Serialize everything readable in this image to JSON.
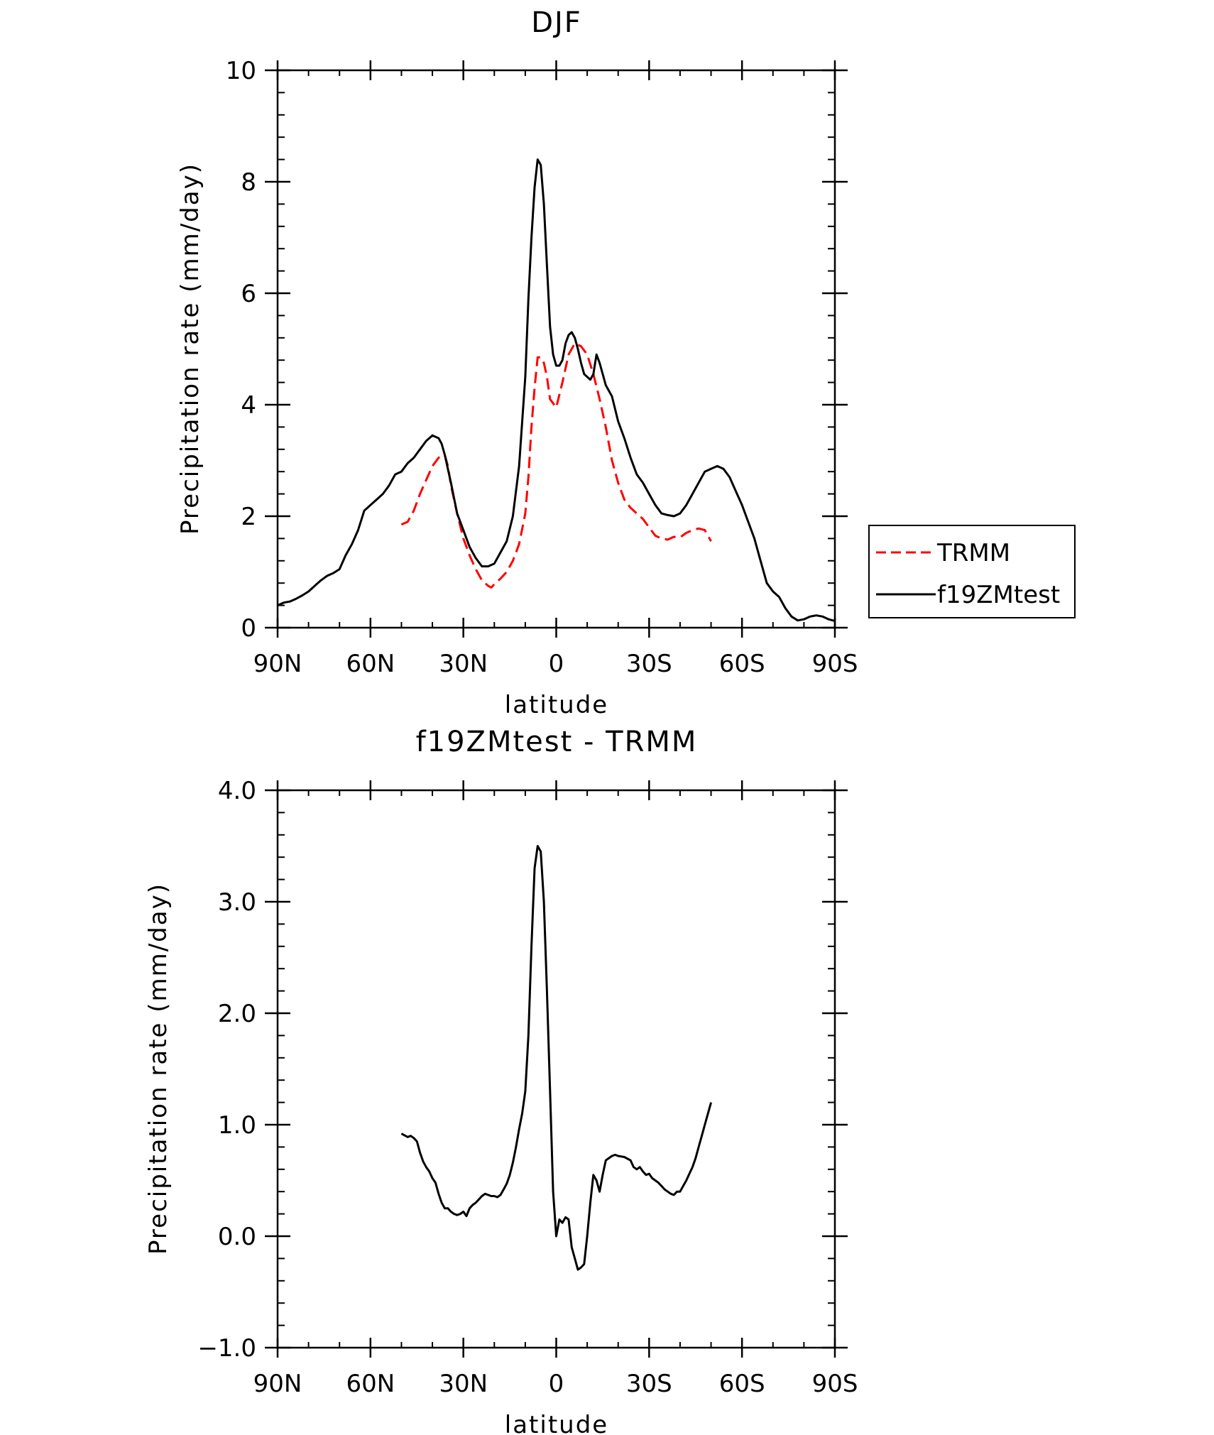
{
  "chart_data": [
    {
      "type": "line",
      "title": "DJF",
      "xlabel": "latitude",
      "ylabel": "Precipitation rate (mm/day)",
      "xlim": [
        90,
        -90
      ],
      "ylim": [
        0,
        10
      ],
      "x_ticks": [
        90,
        60,
        30,
        0,
        -30,
        -60,
        -90
      ],
      "x_tick_labels": [
        "90N",
        "60N",
        "30N",
        "0",
        "30S",
        "60S",
        "90S"
      ],
      "y_ticks": [
        0,
        2,
        4,
        6,
        8,
        10
      ],
      "y_tick_labels": [
        "0",
        "2",
        "4",
        "6",
        "8",
        "10"
      ],
      "legend": {
        "position": "right",
        "entries": [
          "TRMM",
          "f19ZMtest"
        ]
      },
      "series": [
        {
          "name": "TRMM",
          "color": "#ff0000",
          "style": "dashed",
          "x": [
            50,
            48,
            46,
            44,
            42,
            40,
            38,
            36,
            35,
            34,
            32,
            30,
            28,
            26,
            24,
            22,
            21,
            20,
            18,
            16,
            14,
            12,
            10,
            9,
            8,
            7,
            6,
            5,
            4,
            3,
            2,
            0,
            -2,
            -4,
            -6,
            -8,
            -10,
            -12,
            -14,
            -16,
            -18,
            -20,
            -22,
            -24,
            -26,
            -28,
            -30,
            -32,
            -34,
            -36,
            -38,
            -40,
            -42,
            -44,
            -46,
            -48,
            -50
          ],
          "y": [
            1.85,
            1.9,
            2.1,
            2.4,
            2.65,
            2.9,
            3.05,
            3.1,
            2.9,
            2.55,
            2.05,
            1.6,
            1.3,
            1.05,
            0.85,
            0.75,
            0.72,
            0.78,
            0.88,
            1.0,
            1.2,
            1.5,
            2.05,
            2.7,
            3.6,
            4.3,
            4.85,
            4.85,
            4.75,
            4.5,
            4.1,
            3.95,
            4.4,
            4.9,
            5.1,
            5.05,
            4.9,
            4.55,
            4.1,
            3.6,
            3.0,
            2.6,
            2.3,
            2.15,
            2.05,
            1.95,
            1.8,
            1.65,
            1.6,
            1.58,
            1.63,
            1.62,
            1.7,
            1.75,
            1.78,
            1.75,
            1.55
          ]
        },
        {
          "name": "f19ZMtest",
          "color": "#000000",
          "style": "solid",
          "x": [
            90,
            88,
            86,
            84,
            82,
            80,
            78,
            76,
            74,
            72,
            70,
            68,
            66,
            64,
            62,
            61,
            60,
            58,
            56,
            54,
            52,
            50,
            48,
            46,
            44,
            42,
            40,
            38,
            37,
            36,
            34,
            32,
            30,
            28,
            26,
            24,
            22,
            20,
            18,
            16,
            14,
            12,
            10,
            9,
            8,
            7,
            6,
            5,
            4,
            3,
            2,
            1,
            0,
            -1,
            -2,
            -3,
            -4,
            -5,
            -6,
            -7,
            -8,
            -9,
            -10,
            -11,
            -12,
            -13,
            -14,
            -16,
            -18,
            -20,
            -22,
            -24,
            -26,
            -28,
            -30,
            -32,
            -34,
            -36,
            -38,
            -40,
            -42,
            -44,
            -46,
            -48,
            -50,
            -52,
            -54,
            -56,
            -58,
            -60,
            -62,
            -64,
            -66,
            -68,
            -70,
            -72,
            -74,
            -76,
            -78,
            -80,
            -82,
            -84,
            -86,
            -88,
            -90
          ],
          "y": [
            0.4,
            0.45,
            0.47,
            0.52,
            0.58,
            0.65,
            0.75,
            0.85,
            0.93,
            0.98,
            1.05,
            1.3,
            1.5,
            1.75,
            2.1,
            2.15,
            2.2,
            2.3,
            2.4,
            2.55,
            2.75,
            2.8,
            2.95,
            3.05,
            3.2,
            3.35,
            3.45,
            3.4,
            3.3,
            3.1,
            2.6,
            2.05,
            1.75,
            1.45,
            1.25,
            1.1,
            1.1,
            1.15,
            1.35,
            1.55,
            2.0,
            2.9,
            4.5,
            5.9,
            7.0,
            7.9,
            8.4,
            8.3,
            7.6,
            6.5,
            5.4,
            4.9,
            4.7,
            4.7,
            4.8,
            5.1,
            5.25,
            5.3,
            5.2,
            5.0,
            4.75,
            4.55,
            4.5,
            4.45,
            4.55,
            4.9,
            4.75,
            4.35,
            4.15,
            3.7,
            3.4,
            3.05,
            2.75,
            2.6,
            2.4,
            2.2,
            2.05,
            2.02,
            2.0,
            2.05,
            2.2,
            2.4,
            2.6,
            2.8,
            2.85,
            2.9,
            2.85,
            2.7,
            2.45,
            2.2,
            1.9,
            1.6,
            1.2,
            0.8,
            0.65,
            0.55,
            0.35,
            0.2,
            0.13,
            0.15,
            0.2,
            0.22,
            0.2,
            0.15,
            0.12
          ]
        }
      ]
    },
    {
      "type": "line",
      "title": "f19ZMtest - TRMM",
      "xlabel": "latitude",
      "ylabel": "Precipitation rate (mm/day)",
      "xlim": [
        90,
        -90
      ],
      "ylim": [
        -1.0,
        4.0
      ],
      "x_ticks": [
        90,
        60,
        30,
        0,
        -30,
        -60,
        -90
      ],
      "x_tick_labels": [
        "90N",
        "60N",
        "30N",
        "0",
        "30S",
        "60S",
        "90S"
      ],
      "y_ticks": [
        -1.0,
        0.0,
        1.0,
        2.0,
        3.0,
        4.0
      ],
      "y_tick_labels": [
        "−1.0",
        "0.0",
        "1.0",
        "2.0",
        "3.0",
        "4.0"
      ],
      "series": [
        {
          "name": "f19ZMtest - TRMM",
          "color": "#000000",
          "style": "solid",
          "x": [
            50,
            48,
            47,
            46,
            45,
            44,
            43,
            42,
            41,
            40,
            39,
            38,
            37,
            36,
            35,
            34,
            33,
            32,
            31,
            30,
            29,
            28,
            27,
            26,
            25,
            24,
            23,
            22,
            21,
            20,
            19,
            18,
            17,
            16,
            15,
            14,
            13,
            12,
            11,
            10,
            9,
            8,
            7,
            6,
            5,
            4,
            3,
            2,
            1,
            0,
            -1,
            -2,
            -3,
            -4,
            -5,
            -6,
            -7,
            -8,
            -9,
            -10,
            -11,
            -12,
            -13,
            -14,
            -15,
            -16,
            -17,
            -18,
            -19,
            -20,
            -22,
            -24,
            -25,
            -26,
            -27,
            -28,
            -29,
            -30,
            -31,
            -32,
            -33,
            -34,
            -35,
            -36,
            -37,
            -38,
            -39,
            -40,
            -41,
            -42,
            -43,
            -44,
            -45,
            -46,
            -47,
            -48,
            -49,
            -50
          ],
          "y": [
            0.92,
            0.89,
            0.9,
            0.88,
            0.85,
            0.75,
            0.67,
            0.62,
            0.58,
            0.52,
            0.48,
            0.38,
            0.3,
            0.25,
            0.25,
            0.22,
            0.2,
            0.19,
            0.2,
            0.22,
            0.18,
            0.25,
            0.28,
            0.3,
            0.33,
            0.36,
            0.38,
            0.37,
            0.36,
            0.36,
            0.35,
            0.37,
            0.42,
            0.47,
            0.55,
            0.66,
            0.8,
            0.96,
            1.1,
            1.3,
            1.8,
            2.6,
            3.3,
            3.5,
            3.45,
            3.0,
            2.2,
            1.3,
            0.4,
            0.0,
            0.15,
            0.12,
            0.17,
            0.15,
            -0.1,
            -0.2,
            -0.3,
            -0.28,
            -0.25,
            0.0,
            0.3,
            0.55,
            0.5,
            0.4,
            0.55,
            0.68,
            0.7,
            0.72,
            0.73,
            0.72,
            0.71,
            0.68,
            0.62,
            0.6,
            0.62,
            0.58,
            0.55,
            0.56,
            0.52,
            0.5,
            0.48,
            0.45,
            0.42,
            0.4,
            0.38,
            0.37,
            0.4,
            0.4,
            0.45,
            0.5,
            0.56,
            0.62,
            0.7,
            0.8,
            0.9,
            1.0,
            1.1,
            1.2
          ]
        }
      ]
    }
  ]
}
